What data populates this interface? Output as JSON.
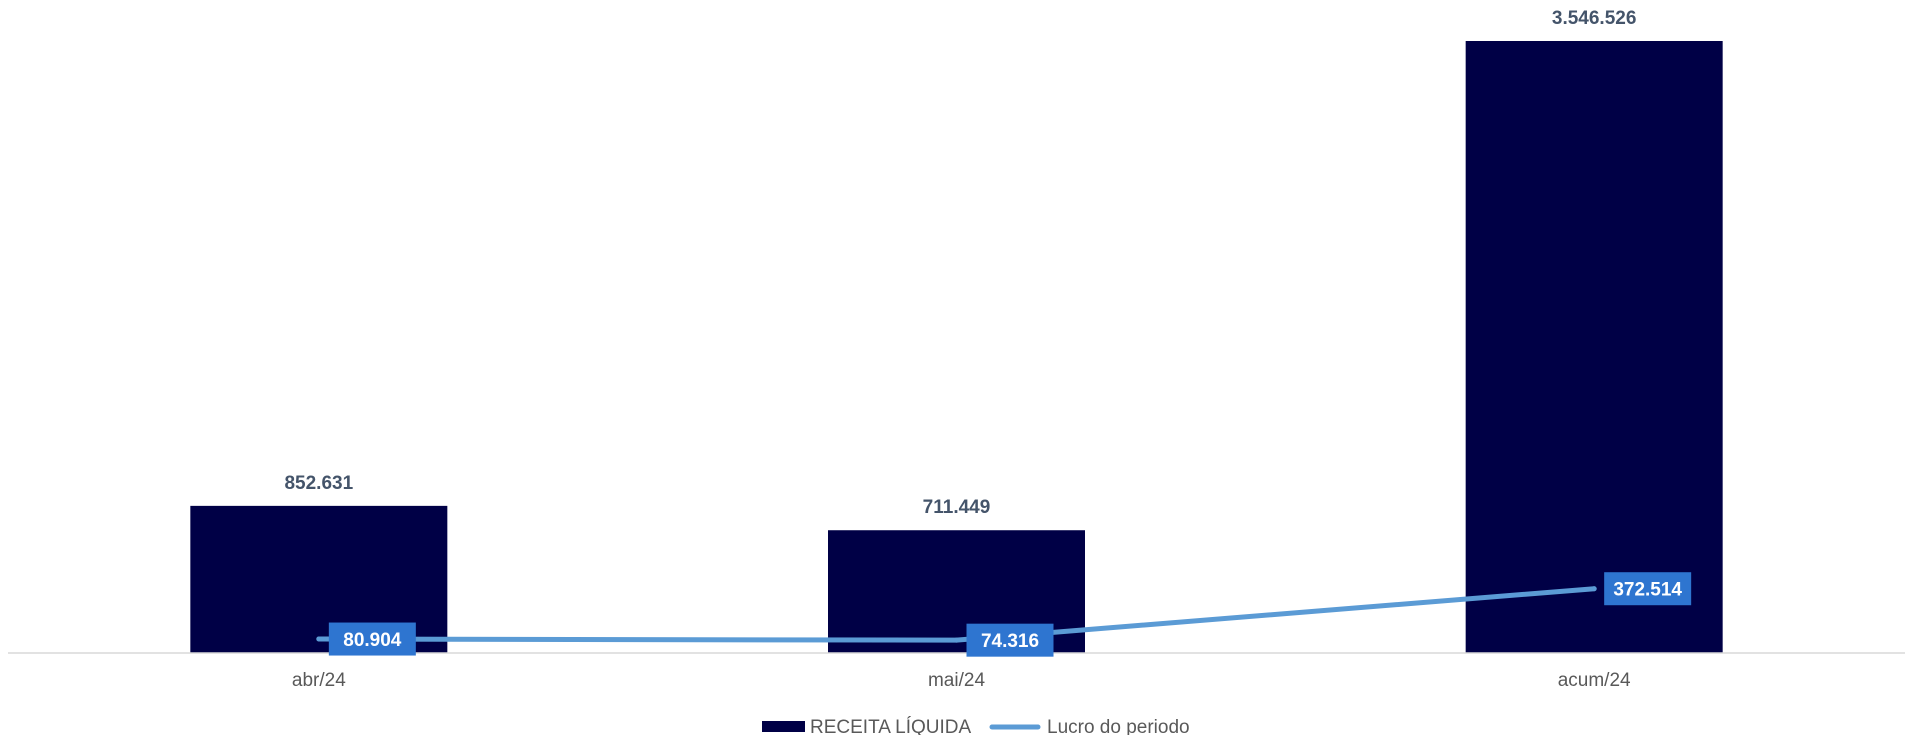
{
  "chart_data": {
    "type": "bar",
    "categories": [
      "abr/24",
      "mai/24",
      "acum/24"
    ],
    "series": [
      {
        "name": "RECEITA LÍQUIDA",
        "type": "bar",
        "values": [
          852631,
          711449,
          3546526
        ],
        "labels": [
          "852.631",
          "711.449",
          "3.546.526"
        ],
        "color": "#000046"
      },
      {
        "name": "Lucro do periodo",
        "type": "line",
        "values": [
          80904,
          74316,
          372514
        ],
        "labels": [
          "80.904",
          "74.316",
          "372.514"
        ],
        "color": "#5B9BD5",
        "label_bg": "#2E75D0"
      }
    ],
    "ylim": [
      0,
      3546526
    ],
    "grid": false,
    "legend": "bottom",
    "title": "",
    "xlabel": "",
    "ylabel": ""
  }
}
